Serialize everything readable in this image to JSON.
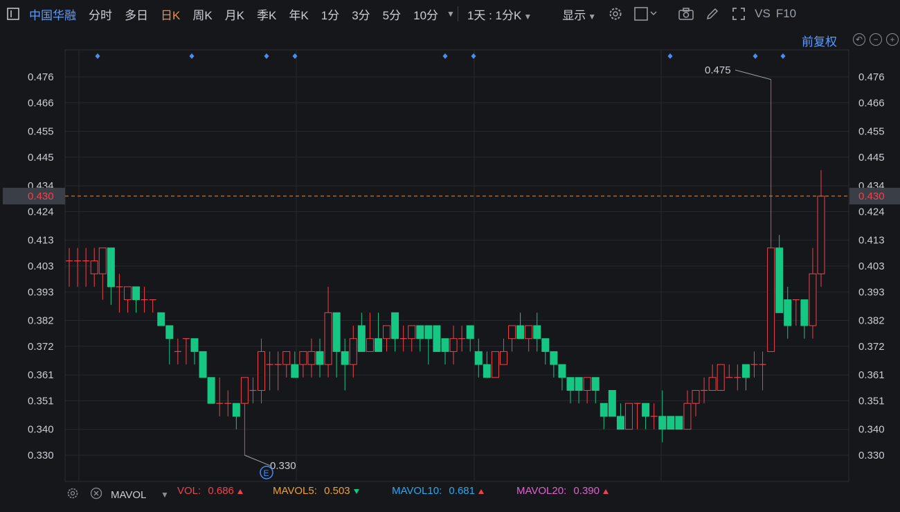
{
  "toolbar": {
    "stock_name": "中国华融",
    "periods": [
      "分时",
      "多日",
      "日K",
      "周K",
      "月K",
      "季K",
      "年K",
      "1分",
      "3分",
      "5分",
      "10分"
    ],
    "active_period": "日K",
    "interval_select": "1天 : 1分K",
    "display_label": "显示",
    "vs_label": "VS",
    "f10_label": "F10"
  },
  "adjust_label": "前复权",
  "colors": {
    "up": "#f0424b",
    "down": "#16c784",
    "price_line": "#f08c3a",
    "marker": "#4a8df0",
    "grid": "#26282e",
    "axis_text": "#c9cdd4"
  },
  "current_price": "0.430",
  "max_label": "0.475",
  "min_label": "0.330",
  "event_badge": "E",
  "volume_panel": {
    "indicator": "MAVOL",
    "items": [
      {
        "label": "VOL:",
        "value": "0.686",
        "color": "#f0424b",
        "trend": "up"
      },
      {
        "label": "MAVOL5:",
        "value": "0.503",
        "color": "#f0a030",
        "trend": "down"
      },
      {
        "label": "MAVOL10:",
        "value": "0.681",
        "color": "#2aa8f0",
        "trend": "up"
      },
      {
        "label": "MAVOL20:",
        "value": "0.390",
        "color": "#e060d0",
        "trend": "up"
      }
    ]
  },
  "chart_data": {
    "type": "candlestick",
    "y_ticks": [
      "0.476",
      "0.466",
      "0.455",
      "0.445",
      "0.434",
      "0.424",
      "0.413",
      "0.403",
      "0.393",
      "0.382",
      "0.372",
      "0.361",
      "0.351",
      "0.340",
      "0.330"
    ],
    "ylim": [
      0.322,
      0.483
    ],
    "grid": true,
    "candles": [
      [
        0.405,
        0.405,
        0.41,
        0.395
      ],
      [
        0.405,
        0.405,
        0.41,
        0.395
      ],
      [
        0.405,
        0.405,
        0.41,
        0.395
      ],
      [
        0.4,
        0.405,
        0.41,
        0.395
      ],
      [
        0.4,
        0.41,
        0.41,
        0.39
      ],
      [
        0.41,
        0.395,
        0.41,
        0.388
      ],
      [
        0.395,
        0.395,
        0.4,
        0.385
      ],
      [
        0.39,
        0.395,
        0.395,
        0.385
      ],
      [
        0.395,
        0.39,
        0.395,
        0.385
      ],
      [
        0.39,
        0.39,
        0.395,
        0.385
      ],
      [
        0.39,
        0.39,
        0.39,
        0.385
      ],
      [
        0.385,
        0.38,
        0.385,
        0.38
      ],
      [
        0.38,
        0.375,
        0.38,
        0.365
      ],
      [
        0.37,
        0.37,
        0.375,
        0.365
      ],
      [
        0.375,
        0.375,
        0.375,
        0.365
      ],
      [
        0.375,
        0.37,
        0.375,
        0.365
      ],
      [
        0.37,
        0.36,
        0.37,
        0.36
      ],
      [
        0.36,
        0.35,
        0.36,
        0.35
      ],
      [
        0.35,
        0.35,
        0.36,
        0.345
      ],
      [
        0.35,
        0.35,
        0.355,
        0.345
      ],
      [
        0.35,
        0.345,
        0.35,
        0.34
      ],
      [
        0.35,
        0.36,
        0.36,
        0.33
      ],
      [
        0.355,
        0.355,
        0.36,
        0.35
      ],
      [
        0.355,
        0.37,
        0.375,
        0.35
      ],
      [
        0.365,
        0.365,
        0.37,
        0.355
      ],
      [
        0.365,
        0.365,
        0.37,
        0.355
      ],
      [
        0.365,
        0.37,
        0.37,
        0.36
      ],
      [
        0.365,
        0.36,
        0.37,
        0.36
      ],
      [
        0.365,
        0.37,
        0.37,
        0.36
      ],
      [
        0.365,
        0.37,
        0.375,
        0.36
      ],
      [
        0.37,
        0.365,
        0.375,
        0.36
      ],
      [
        0.365,
        0.385,
        0.395,
        0.36
      ],
      [
        0.385,
        0.37,
        0.385,
        0.36
      ],
      [
        0.37,
        0.365,
        0.375,
        0.355
      ],
      [
        0.365,
        0.375,
        0.38,
        0.36
      ],
      [
        0.38,
        0.37,
        0.385,
        0.37
      ],
      [
        0.37,
        0.375,
        0.385,
        0.37
      ],
      [
        0.375,
        0.37,
        0.385,
        0.37
      ],
      [
        0.375,
        0.38,
        0.38,
        0.37
      ],
      [
        0.385,
        0.375,
        0.385,
        0.37
      ],
      [
        0.375,
        0.375,
        0.38,
        0.37
      ],
      [
        0.375,
        0.38,
        0.38,
        0.37
      ],
      [
        0.38,
        0.375,
        0.38,
        0.37
      ],
      [
        0.38,
        0.375,
        0.38,
        0.365
      ],
      [
        0.38,
        0.37,
        0.38,
        0.37
      ],
      [
        0.375,
        0.37,
        0.375,
        0.365
      ],
      [
        0.37,
        0.375,
        0.38,
        0.365
      ],
      [
        0.375,
        0.375,
        0.38,
        0.37
      ],
      [
        0.38,
        0.375,
        0.38,
        0.37
      ],
      [
        0.37,
        0.365,
        0.375,
        0.36
      ],
      [
        0.365,
        0.36,
        0.37,
        0.36
      ],
      [
        0.36,
        0.37,
        0.37,
        0.36
      ],
      [
        0.365,
        0.37,
        0.375,
        0.365
      ],
      [
        0.375,
        0.38,
        0.38,
        0.37
      ],
      [
        0.38,
        0.375,
        0.385,
        0.375
      ],
      [
        0.375,
        0.38,
        0.38,
        0.37
      ],
      [
        0.38,
        0.375,
        0.385,
        0.37
      ],
      [
        0.375,
        0.37,
        0.375,
        0.365
      ],
      [
        0.37,
        0.365,
        0.37,
        0.36
      ],
      [
        0.365,
        0.36,
        0.365,
        0.355
      ],
      [
        0.36,
        0.355,
        0.36,
        0.35
      ],
      [
        0.36,
        0.355,
        0.36,
        0.35
      ],
      [
        0.355,
        0.36,
        0.36,
        0.35
      ],
      [
        0.36,
        0.355,
        0.36,
        0.35
      ],
      [
        0.35,
        0.345,
        0.35,
        0.34
      ],
      [
        0.355,
        0.345,
        0.355,
        0.345
      ],
      [
        0.345,
        0.34,
        0.35,
        0.34
      ],
      [
        0.34,
        0.35,
        0.35,
        0.34
      ],
      [
        0.35,
        0.35,
        0.35,
        0.34
      ],
      [
        0.35,
        0.345,
        0.35,
        0.34
      ],
      [
        0.345,
        0.345,
        0.35,
        0.34
      ],
      [
        0.345,
        0.34,
        0.355,
        0.335
      ],
      [
        0.345,
        0.34,
        0.345,
        0.34
      ],
      [
        0.345,
        0.34,
        0.345,
        0.34
      ],
      [
        0.34,
        0.35,
        0.355,
        0.34
      ],
      [
        0.35,
        0.355,
        0.355,
        0.345
      ],
      [
        0.355,
        0.355,
        0.36,
        0.35
      ],
      [
        0.355,
        0.36,
        0.365,
        0.355
      ],
      [
        0.355,
        0.365,
        0.365,
        0.355
      ],
      [
        0.36,
        0.36,
        0.365,
        0.36
      ],
      [
        0.36,
        0.36,
        0.365,
        0.355
      ],
      [
        0.365,
        0.36,
        0.365,
        0.355
      ],
      [
        0.365,
        0.365,
        0.37,
        0.36
      ],
      [
        0.365,
        0.365,
        0.37,
        0.355
      ],
      [
        0.37,
        0.41,
        0.475,
        0.37
      ],
      [
        0.41,
        0.385,
        0.415,
        0.385
      ],
      [
        0.39,
        0.38,
        0.395,
        0.375
      ],
      [
        0.39,
        0.39,
        0.39,
        0.38
      ],
      [
        0.39,
        0.38,
        0.39,
        0.375
      ],
      [
        0.38,
        0.4,
        0.41,
        0.375
      ],
      [
        0.4,
        0.43,
        0.44,
        0.395
      ]
    ]
  }
}
